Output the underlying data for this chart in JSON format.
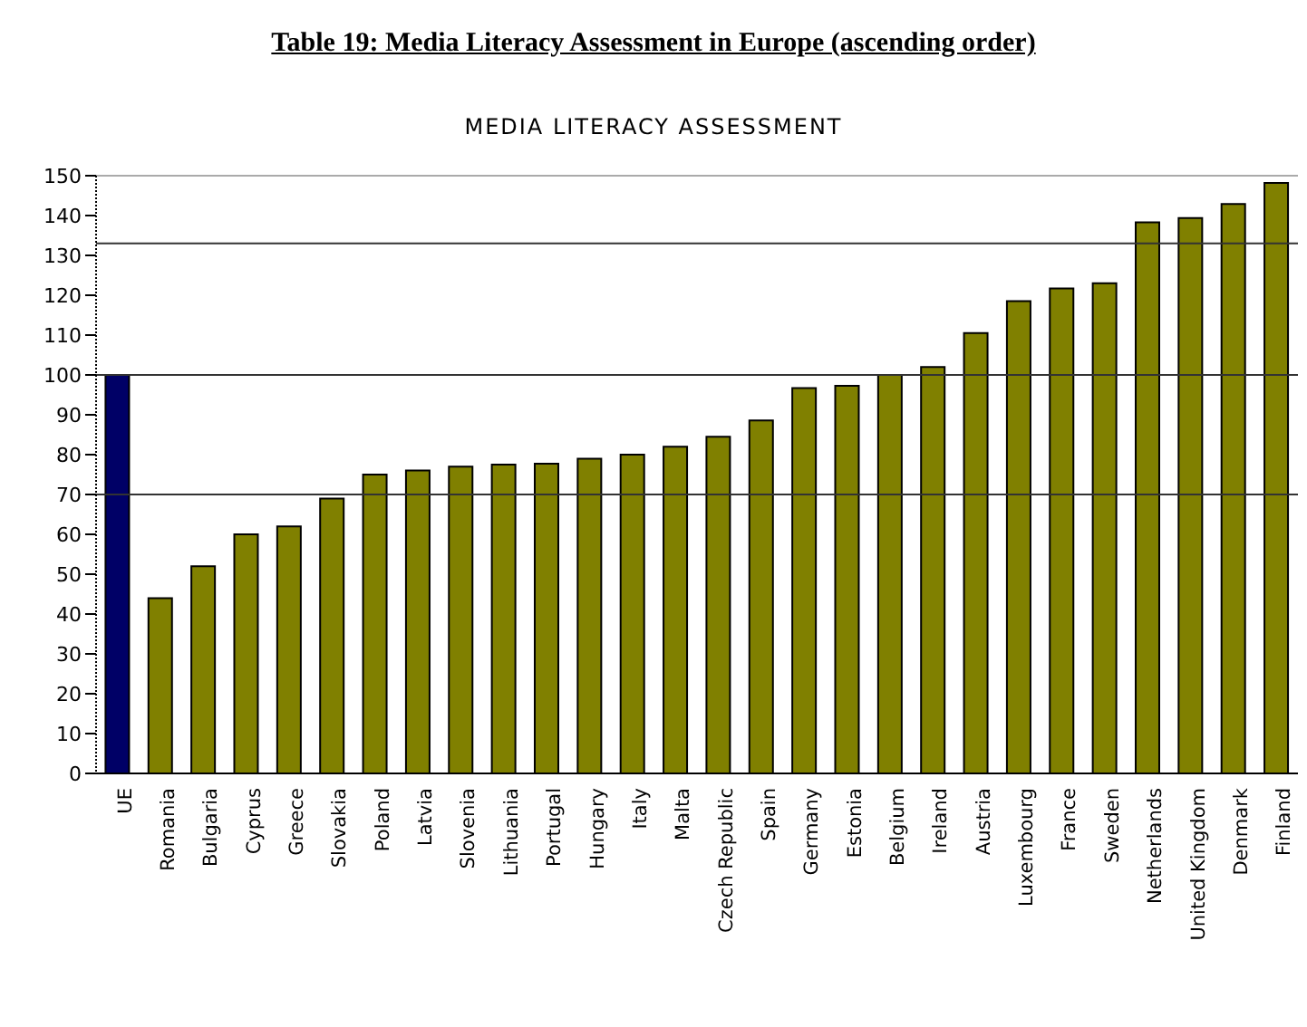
{
  "chart_data": {
    "type": "bar",
    "title": "Table 19:  Media Literacy Assessment in Europe (ascending order)",
    "subtitle": "MEDIA LITERACY ASSESSMENT",
    "categories": [
      "UE",
      "Romania",
      "Bulgaria",
      "Cyprus",
      "Greece",
      "Slovakia",
      "Poland",
      "Latvia",
      "Slovenia",
      "Lithuania",
      "Portugal",
      "Hungary",
      "Italy",
      "Malta",
      "Czech Republic",
      "Spain",
      "Germany",
      "Estonia",
      "Belgium",
      "Ireland",
      "Austria",
      "Luxembourg",
      "France",
      "Sweden",
      "Netherlands",
      "United Kingdom",
      "Denmark",
      "Finland"
    ],
    "values": [
      100,
      44,
      52,
      60,
      62,
      69,
      75,
      76,
      77,
      77.5,
      77.7,
      79,
      80,
      82,
      84.5,
      88.6,
      96.7,
      97.3,
      100,
      102,
      110.5,
      118.5,
      121.7,
      123,
      138.3,
      139.4,
      142.9,
      148.2
    ],
    "colors": [
      "#000066",
      "#808000",
      "#808000",
      "#808000",
      "#808000",
      "#808000",
      "#808000",
      "#808000",
      "#808000",
      "#808000",
      "#808000",
      "#808000",
      "#808000",
      "#808000",
      "#808000",
      "#808000",
      "#808000",
      "#808000",
      "#808000",
      "#808000",
      "#808000",
      "#808000",
      "#808000",
      "#808000",
      "#808000",
      "#808000",
      "#808000",
      "#808000"
    ],
    "ylim": [
      0,
      150
    ],
    "yticks": [
      0,
      10,
      20,
      30,
      40,
      50,
      60,
      70,
      80,
      90,
      100,
      110,
      120,
      130,
      140,
      150
    ],
    "ref_lines": [
      {
        "axis": "y",
        "value": 70
      },
      {
        "axis": "y",
        "value": 100
      },
      {
        "axis": "y",
        "value": 133
      }
    ],
    "grid": false
  }
}
